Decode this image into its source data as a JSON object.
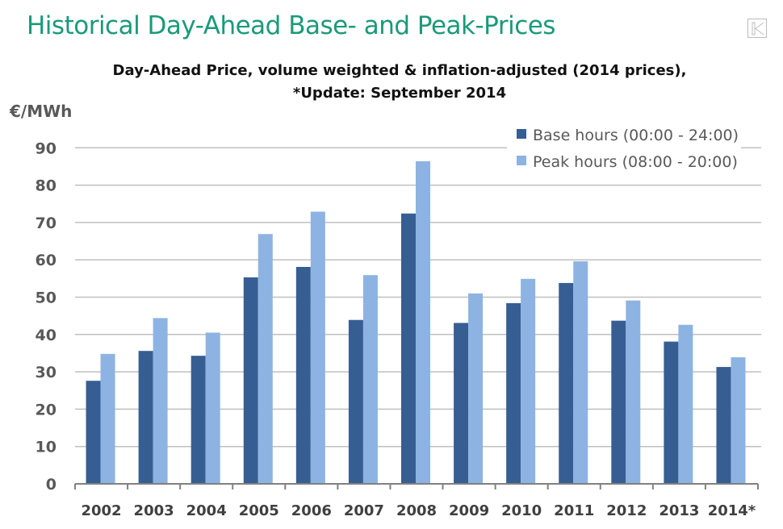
{
  "header": {
    "title": "Historical Day-Ahead Base- and Peak-Prices",
    "nav_icon": "first-slide-icon"
  },
  "chart_data": {
    "type": "bar",
    "title": "Day-Ahead Price, volume weighted & inflation-adjusted (2014 prices),",
    "subtitle": "*Update: September 2014",
    "ylabel": "€/MWh",
    "xlabel": "",
    "ylim": [
      0,
      90
    ],
    "yticks": [
      0,
      10,
      20,
      30,
      40,
      50,
      60,
      70,
      80,
      90
    ],
    "grid": true,
    "legend_position": "top-right",
    "categories": [
      "2002",
      "2003",
      "2004",
      "2005",
      "2006",
      "2007",
      "2008",
      "2009",
      "2010",
      "2011",
      "2012",
      "2013",
      "2014*"
    ],
    "series": [
      {
        "name": "Base hours (00:00 - 24:00)",
        "color": "#375e93",
        "values": [
          27.6,
          35.6,
          34.3,
          55.3,
          58.1,
          43.9,
          72.4,
          43.1,
          48.4,
          53.8,
          43.7,
          38.1,
          31.3
        ]
      },
      {
        "name": "Peak hours (08:00 - 20:00)",
        "color": "#8db3e2",
        "values": [
          34.8,
          44.4,
          40.5,
          66.9,
          72.9,
          55.9,
          86.4,
          51.0,
          54.9,
          59.6,
          49.1,
          42.6,
          33.9
        ]
      }
    ]
  }
}
